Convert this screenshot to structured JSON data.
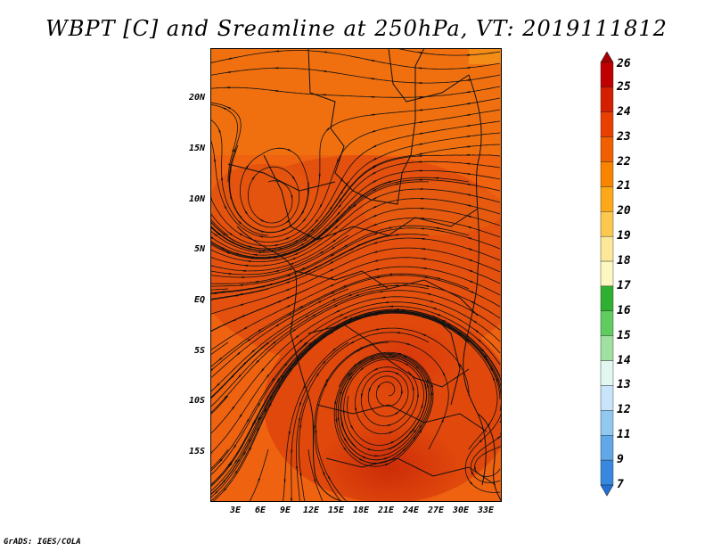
{
  "title": "WBPT [C] and Sreamline at 250hPa, VT: 2019111812",
  "credit": "GrADS: IGES/COLA",
  "lat_labels": [
    "20N",
    "15N",
    "10N",
    "5N",
    "EQ",
    "5S",
    "10S",
    "15S"
  ],
  "lon_labels": [
    "3E",
    "6E",
    "9E",
    "12E",
    "15E",
    "18E",
    "21E",
    "24E",
    "27E",
    "30E",
    "33E"
  ],
  "colorbar": {
    "labels": [
      "26",
      "25",
      "24",
      "23",
      "22",
      "21",
      "20",
      "19",
      "18",
      "17",
      "16",
      "15",
      "14",
      "13",
      "12",
      "11",
      "9",
      "7"
    ],
    "colors": [
      "#a50000",
      "#c00000",
      "#d42000",
      "#e84000",
      "#f06000",
      "#f88400",
      "#fca818",
      "#fcc850",
      "#fce898",
      "#fcf8c0",
      "#30b030",
      "#60cc60",
      "#a0e0a0",
      "#e0f8f0",
      "#c8e4f8",
      "#90c8f0",
      "#60a8e8",
      "#3888e0",
      "#2070d8"
    ]
  }
}
